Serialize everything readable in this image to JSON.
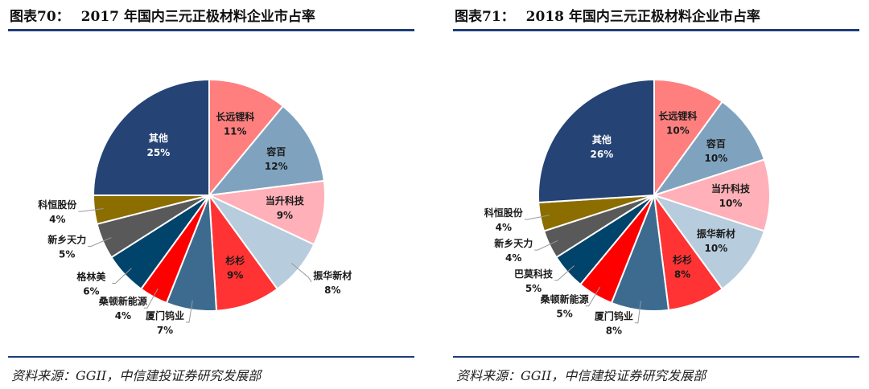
{
  "source": "资料来源：GGII，中信建投证券研究发展部",
  "colors": [
    "#ff7f7f",
    "#7fa3bf",
    "#ffb0b8",
    "#b7ccdd",
    "#ff3333",
    "#3d6b8f",
    "#ff0000",
    "#00436b",
    "#595959",
    "#8c6d00",
    "#254375"
  ],
  "chart_data": [
    {
      "type": "pie",
      "figure_label": "图表70：",
      "title": "2017 年国内三元正极材料企业市占率",
      "slices": [
        {
          "name": "长远锂科",
          "value": 11,
          "pct": "11%"
        },
        {
          "name": "容百",
          "value": 12,
          "pct": "12%"
        },
        {
          "name": "当升科技",
          "value": 9,
          "pct": "9%"
        },
        {
          "name": "振华新材",
          "value": 8,
          "pct": "8%"
        },
        {
          "name": "杉杉",
          "value": 9,
          "pct": "9%"
        },
        {
          "name": "厦门钨业",
          "value": 7,
          "pct": "7%"
        },
        {
          "name": "桑顿新能源",
          "value": 4,
          "pct": "4%"
        },
        {
          "name": "格林美",
          "value": 6,
          "pct": "6%"
        },
        {
          "name": "新乡天力",
          "value": 5,
          "pct": "5%"
        },
        {
          "name": "科恒股份",
          "value": 4,
          "pct": "4%"
        },
        {
          "name": "其他",
          "value": 25,
          "pct": "25%"
        }
      ]
    },
    {
      "type": "pie",
      "figure_label": "图表71：",
      "title": "2018 年国内三元正极材料企业市占率",
      "slices": [
        {
          "name": "长远锂科",
          "value": 10,
          "pct": "10%"
        },
        {
          "name": "容百",
          "value": 10,
          "pct": "10%"
        },
        {
          "name": "当升科技",
          "value": 10,
          "pct": "10%"
        },
        {
          "name": "振华新材",
          "value": 10,
          "pct": "10%"
        },
        {
          "name": "杉杉",
          "value": 8,
          "pct": "8%"
        },
        {
          "name": "厦门钨业",
          "value": 8,
          "pct": "8%"
        },
        {
          "name": "桑顿新能源",
          "value": 5,
          "pct": "5%"
        },
        {
          "name": "巴莫科技",
          "value": 5,
          "pct": "5%"
        },
        {
          "name": "新乡天力",
          "value": 4,
          "pct": "4%"
        },
        {
          "name": "科恒股份",
          "value": 4,
          "pct": "4%"
        },
        {
          "name": "其他",
          "value": 26,
          "pct": "26%"
        }
      ]
    }
  ]
}
